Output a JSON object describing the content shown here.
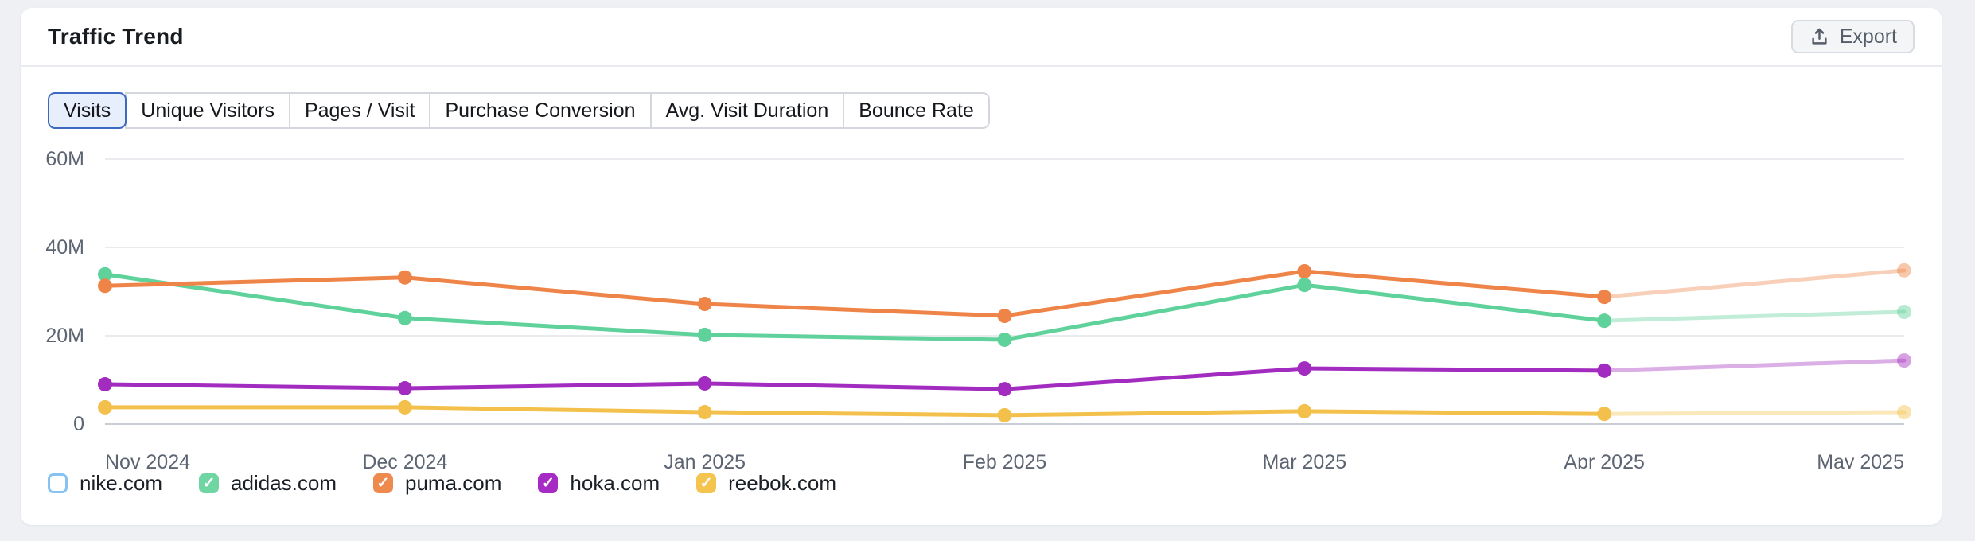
{
  "header": {
    "title": "Traffic Trend",
    "export_label": "Export"
  },
  "tabs": [
    {
      "label": "Visits",
      "selected": true
    },
    {
      "label": "Unique Visitors",
      "selected": false
    },
    {
      "label": "Pages / Visit",
      "selected": false
    },
    {
      "label": "Purchase Conversion",
      "selected": false
    },
    {
      "label": "Avg. Visit Duration",
      "selected": false
    },
    {
      "label": "Bounce Rate",
      "selected": false
    }
  ],
  "chart_data": {
    "type": "line",
    "title": "Traffic Trend — Visits",
    "x": [
      "Nov 2024",
      "Dec 2024",
      "Jan 2025",
      "Feb 2025",
      "Mar 2025",
      "Apr 2025",
      "May 2025"
    ],
    "y_ticks": [
      {
        "label": "60M",
        "value": 60
      },
      {
        "label": "40M",
        "value": 40
      },
      {
        "label": "20M",
        "value": 20
      },
      {
        "label": "0",
        "value": 0
      }
    ],
    "ylim": [
      0,
      60
    ],
    "unit": "M visits",
    "grid": "horizontal",
    "legend_position": "bottom",
    "projection": "segment from Apr 2025 to May 2025 drawn faded (estimated data)",
    "series": [
      {
        "name": "adidas.com",
        "color": "#5fd19a",
        "values": [
          33.9,
          24.0,
          20.2,
          19.1,
          31.5,
          23.4,
          25.4
        ]
      },
      {
        "name": "puma.com",
        "color": "#ee8448",
        "values": [
          31.3,
          33.2,
          27.2,
          24.5,
          34.6,
          28.8,
          34.8
        ]
      },
      {
        "name": "hoka.com",
        "color": "#a32cc0",
        "values": [
          9.0,
          8.1,
          9.2,
          7.9,
          12.6,
          12.1,
          14.4
        ]
      },
      {
        "name": "reebok.com",
        "color": "#f3c14b",
        "values": [
          3.8,
          3.8,
          2.7,
          2.0,
          2.9,
          2.3,
          2.7
        ]
      }
    ]
  },
  "legend": [
    {
      "label": "nike.com",
      "checked": false,
      "color": "#86c2f2"
    },
    {
      "label": "adidas.com",
      "checked": true,
      "color": "#6fd6a3"
    },
    {
      "label": "puma.com",
      "checked": true,
      "color": "#ef8a4e"
    },
    {
      "label": "hoka.com",
      "checked": true,
      "color": "#a62bc4"
    },
    {
      "label": "reebok.com",
      "checked": true,
      "color": "#f5c44f"
    }
  ],
  "colors": {
    "page_bg": "#eef0f4",
    "card_bg": "#ffffff",
    "grid_line": "#e9ebef",
    "axis_line": "#c9cdd4",
    "axis_text": "#5d6572",
    "selected_tab_border": "#3e69c2",
    "selected_tab_bg": "#e8effc"
  }
}
